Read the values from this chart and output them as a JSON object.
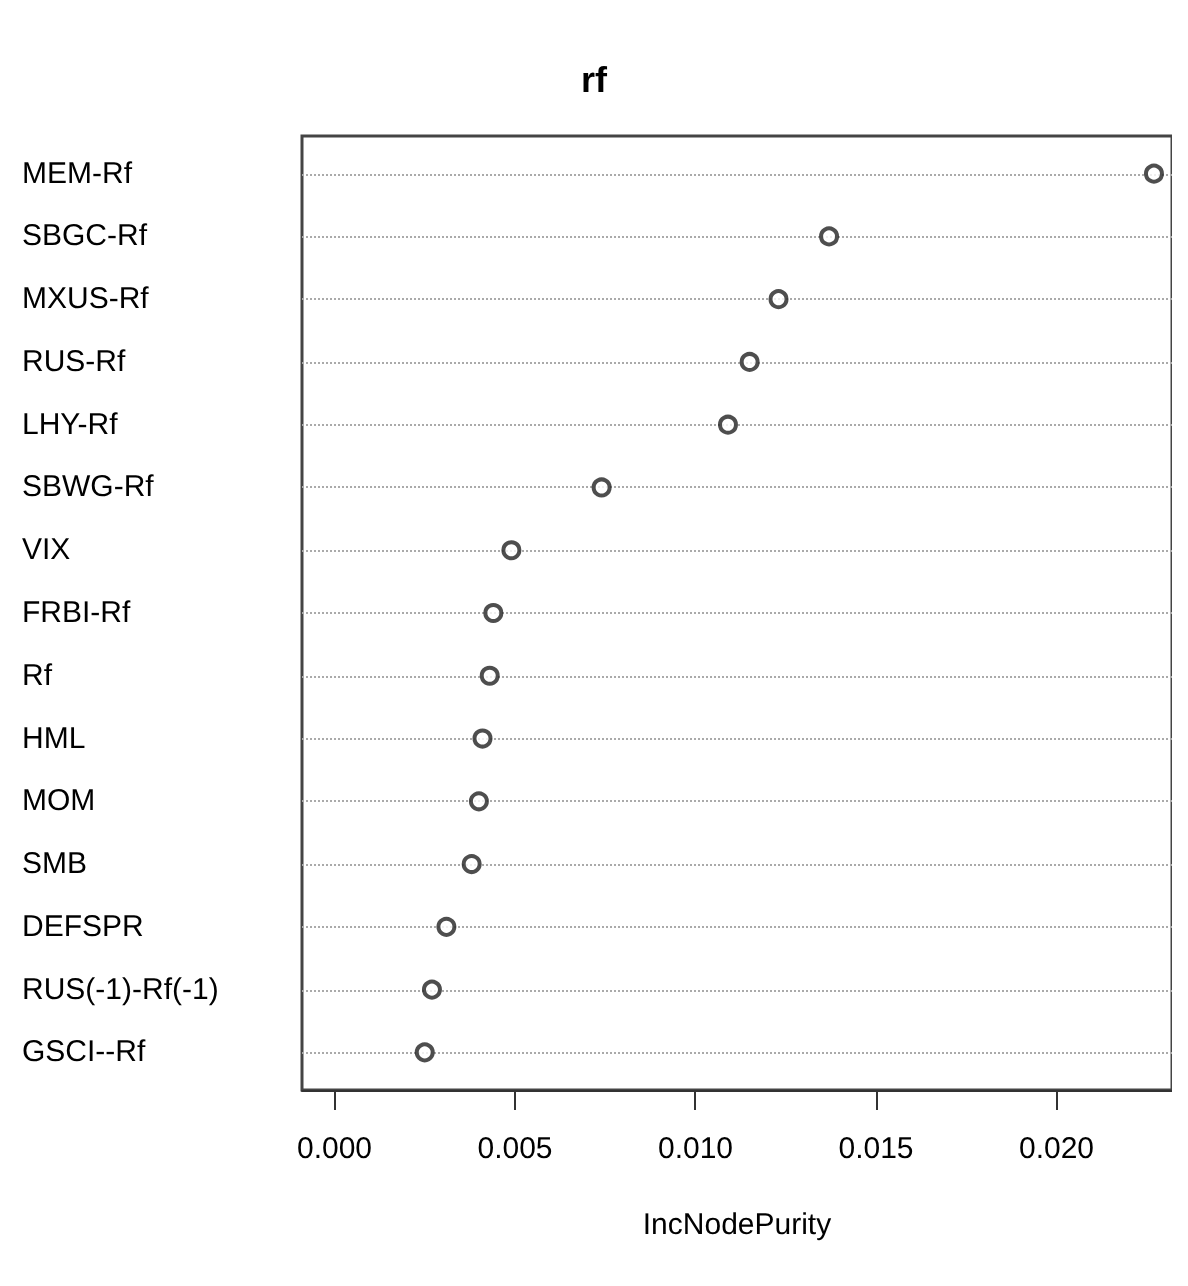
{
  "chart_data": {
    "type": "scatter",
    "orientation": "horizontal",
    "title": "rf",
    "xlabel": "IncNodePurity",
    "categories": [
      "MEM-Rf",
      "SBGC-Rf",
      "MXUS-Rf",
      "RUS-Rf",
      "LHY-Rf",
      "SBWG-Rf",
      "VIX",
      "FRBI-Rf",
      "Rf",
      "HML",
      "MOM",
      "SMB",
      "DEFSPR",
      "RUS(-1)-Rf(-1)",
      "GSCI--Rf"
    ],
    "values": [
      0.0227,
      0.0137,
      0.0123,
      0.0115,
      0.0109,
      0.0074,
      0.0049,
      0.0044,
      0.0043,
      0.0041,
      0.004,
      0.0038,
      0.0031,
      0.0027,
      0.0025
    ],
    "color": "#222222",
    "marker": "circle",
    "grid": "y",
    "xlim": [
      -0.0009,
      0.0232
    ],
    "xticks": [
      {
        "value": 0,
        "label": "0.000"
      },
      {
        "value": 0.005,
        "label": "0.005"
      },
      {
        "value": 0.01,
        "label": "0.010"
      },
      {
        "value": 0.015,
        "label": "0.015"
      },
      {
        "value": 0.02,
        "label": "0.020"
      }
    ]
  }
}
